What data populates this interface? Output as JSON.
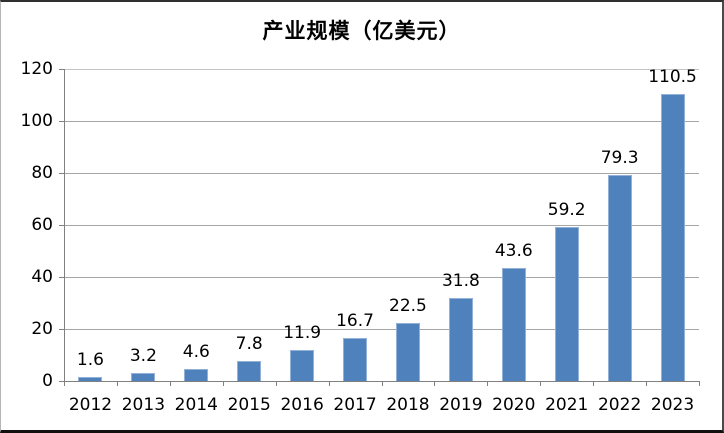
{
  "title": "产业规模（亿美元）",
  "chart_data": {
    "type": "bar",
    "title": "产业规模（亿美元）",
    "categories": [
      "2012",
      "2013",
      "2014",
      "2015",
      "2016",
      "2017",
      "2018",
      "2019",
      "2020",
      "2021",
      "2022",
      "2023"
    ],
    "values": [
      1.6,
      3.2,
      4.6,
      7.8,
      11.9,
      16.7,
      22.5,
      31.8,
      43.6,
      59.2,
      79.3,
      110.5
    ],
    "value_labels": [
      "1.6",
      "3.2",
      "4.6",
      "7.8",
      "11.9",
      "16.7",
      "22.5",
      "31.8",
      "43.6",
      "59.2",
      "79.3",
      "110.5"
    ],
    "xlabel": "",
    "ylabel": "",
    "ylim": [
      0,
      120
    ],
    "yticks": [
      0,
      20,
      40,
      60,
      80,
      100,
      120
    ],
    "grid": true,
    "legend_position": "none",
    "data_labels": true,
    "colors": {
      "bar_fill": "#4f81bd",
      "bar_edge": "#93b1d7",
      "gridline": "#a6a6a6",
      "gridline_top": "#c4c4c4",
      "axis": "#808080",
      "text": "#000000",
      "background": "#ffffff"
    }
  }
}
